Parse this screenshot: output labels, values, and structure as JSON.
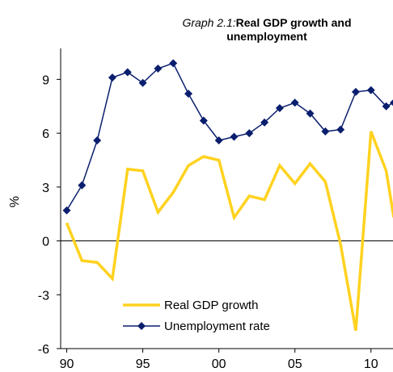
{
  "chart_data": {
    "type": "line",
    "title_prefix": "Graph 2.1:",
    "title_line1": "Real GDP growth and",
    "title_line2": "unemployment",
    "ylabel": "%",
    "xlabel": "",
    "ylim": [
      -6,
      10.5
    ],
    "yticks": [
      9,
      6,
      3,
      0,
      -3,
      -6
    ],
    "xlim": [
      1989.6,
      2011.5
    ],
    "xticks": [
      {
        "year": 1990,
        "label": "90"
      },
      {
        "year": 1995,
        "label": "95"
      },
      {
        "year": 2000,
        "label": "00"
      },
      {
        "year": 2005,
        "label": "05"
      },
      {
        "year": 2010,
        "label": "10"
      }
    ],
    "legend_position": "bottom-center",
    "series": [
      {
        "name": "Real GDP growth",
        "color": "#FFD21F",
        "marker": "none",
        "x": [
          1990,
          1991,
          1992,
          1993,
          1994,
          1995,
          1996,
          1997,
          1998,
          1999,
          2000,
          2001,
          2002,
          2003,
          2004,
          2005,
          2006,
          2007,
          2008,
          2009,
          2010,
          2011,
          2011.5
        ],
        "y": [
          1.0,
          -1.1,
          -1.2,
          -2.1,
          4.0,
          3.9,
          1.6,
          2.7,
          4.2,
          4.7,
          4.5,
          1.3,
          2.5,
          2.3,
          4.2,
          3.2,
          4.3,
          3.3,
          -0.2,
          -5.0,
          6.1,
          3.9,
          1.3
        ]
      },
      {
        "name": "Unemployment rate",
        "color": "#0A1E6E",
        "marker": "diamond",
        "x": [
          1990,
          1991,
          1992,
          1993,
          1994,
          1995,
          1996,
          1997,
          1998,
          1999,
          2000,
          2001,
          2002,
          2003,
          2004,
          2005,
          2006,
          2007,
          2008,
          2009,
          2010,
          2011,
          2011.5
        ],
        "y": [
          1.7,
          3.1,
          5.6,
          9.1,
          9.4,
          8.8,
          9.6,
          9.9,
          8.2,
          6.7,
          5.6,
          5.8,
          6.0,
          6.6,
          7.4,
          7.7,
          7.1,
          6.1,
          6.2,
          8.3,
          8.4,
          7.5,
          7.7
        ]
      }
    ]
  }
}
